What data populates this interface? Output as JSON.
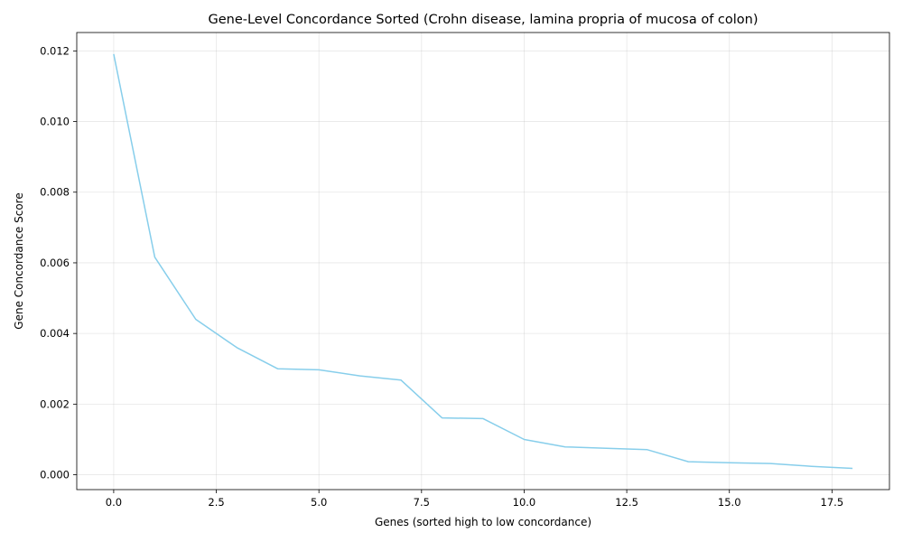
{
  "chart_data": {
    "type": "line",
    "title": "Gene-Level Concordance Sorted (Crohn disease, lamina propria of mucosa of colon)",
    "xlabel": "Genes (sorted high to low concordance)",
    "ylabel": "Gene Concordance Score",
    "xlim": [
      -0.9,
      18.9
    ],
    "ylim": [
      -0.00042,
      0.01252
    ],
    "xticks": [
      0.0,
      2.5,
      5.0,
      7.5,
      10.0,
      12.5,
      15.0,
      17.5
    ],
    "xtick_labels": [
      "0.0",
      "2.5",
      "5.0",
      "7.5",
      "10.0",
      "12.5",
      "15.0",
      "17.5"
    ],
    "yticks": [
      0.0,
      0.002,
      0.004,
      0.006,
      0.008,
      0.01,
      0.012
    ],
    "ytick_labels": [
      "0.000",
      "0.002",
      "0.004",
      "0.006",
      "0.008",
      "0.010",
      "0.012"
    ],
    "grid": true,
    "series": [
      {
        "color": "#87ceeb",
        "x": [
          0,
          1,
          2,
          3,
          4,
          5,
          6,
          7,
          8,
          9,
          10,
          11,
          12,
          13,
          14,
          15,
          16,
          17,
          18
        ],
        "y": [
          0.01191,
          0.00616,
          0.0044,
          0.0036,
          0.003,
          0.00297,
          0.0028,
          0.00268,
          0.00161,
          0.00159,
          0.001,
          0.00079,
          0.00075,
          0.00071,
          0.00037,
          0.00034,
          0.00032,
          0.00024,
          0.00018
        ]
      }
    ]
  }
}
